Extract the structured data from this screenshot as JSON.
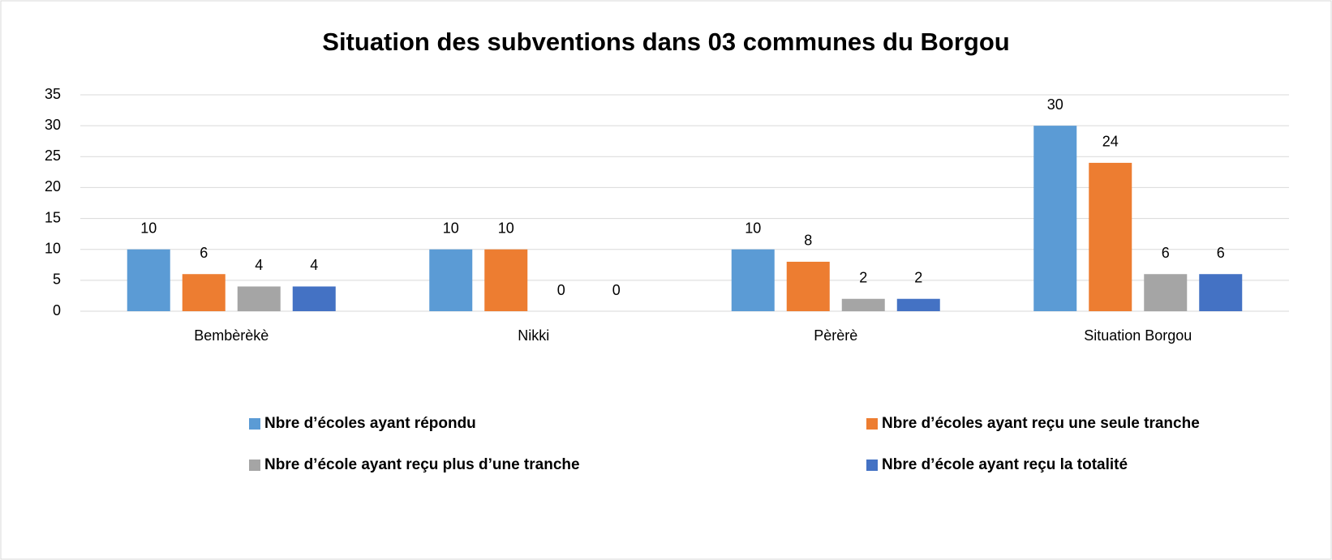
{
  "chart_data": {
    "type": "bar",
    "title": "Situation des subventions dans 03 communes du Borgou",
    "categories": [
      "Bembèrèkè",
      "Nikki",
      "Pèrèrè",
      "Situation Borgou"
    ],
    "series": [
      {
        "name": "Nbre d’écoles ayant répondu",
        "color": "#5b9bd5",
        "values": [
          10,
          10,
          10,
          30
        ]
      },
      {
        "name": "Nbre d’écoles ayant reçu une seule tranche",
        "color": "#ed7d31",
        "values": [
          6,
          10,
          8,
          24
        ]
      },
      {
        "name": "Nbre d’école ayant reçu plus d’une tranche",
        "color": "#a5a5a5",
        "values": [
          4,
          0,
          2,
          6
        ]
      },
      {
        "name": "Nbre d’école ayant reçu la totalité",
        "color": "#4472c4",
        "values": [
          4,
          0,
          2,
          6
        ]
      }
    ],
    "ylim": [
      0,
      35
    ],
    "yticks": [
      0,
      5,
      10,
      15,
      20,
      25,
      30,
      35
    ],
    "grid": true,
    "legend": "bottom"
  }
}
